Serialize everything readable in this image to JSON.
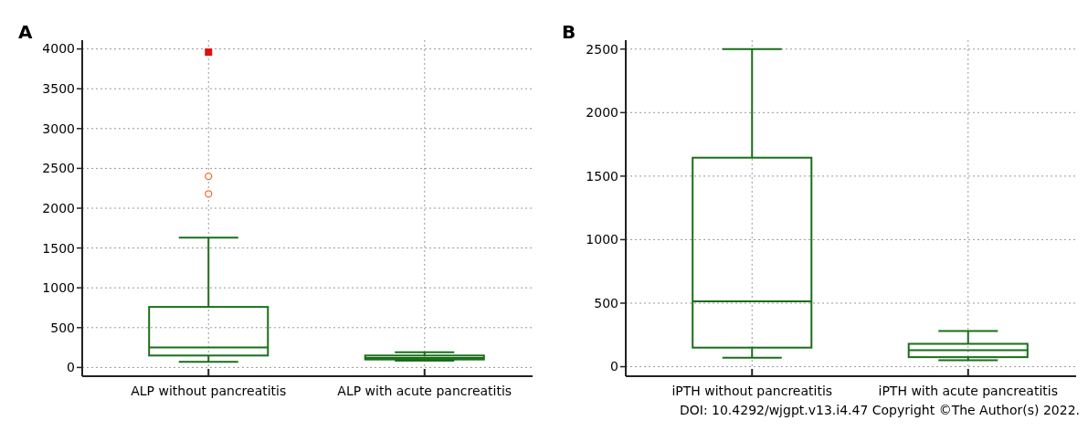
{
  "chart_data": [
    {
      "type": "box",
      "title": "A",
      "categories": [
        "ALP without pancreatitis",
        "ALP with acute pancreatitis"
      ],
      "ylim": [
        -110,
        4110
      ],
      "yticks": [
        0,
        500,
        1000,
        1500,
        2000,
        2500,
        3000,
        3500,
        4000
      ],
      "grid": true,
      "series": [
        {
          "type": "box",
          "color": "#1a6e1a",
          "boxes": [
            {
              "low": 70,
              "q1": 150,
              "median": 250,
              "q3": 760,
              "high": 1630
            },
            {
              "low": 85,
              "q1": 100,
              "median": 120,
              "q3": 150,
              "high": 190
            }
          ]
        },
        {
          "type": "scatter",
          "color": "#f07030",
          "marker": "circle",
          "x": [
            "ALP without pancreatitis",
            "ALP without pancreatitis"
          ],
          "values": [
            2180,
            2400
          ]
        },
        {
          "type": "scatter",
          "color": "#e01010",
          "marker": "square",
          "x": [
            "ALP without pancreatitis"
          ],
          "values": [
            3960
          ]
        }
      ]
    },
    {
      "type": "box",
      "title": "B",
      "categories": [
        "iPTH without pancreatitis",
        "iPTH with acute pancreatitis"
      ],
      "ylim": [
        -75,
        2570
      ],
      "yticks": [
        0,
        500,
        1000,
        1500,
        2000,
        2500
      ],
      "grid": true,
      "annotations": [
        "DOI: 10.4292/wjgpt.v13.i4.47  Copyright ©The Author(s) 2022."
      ],
      "series": [
        {
          "type": "box",
          "color": "#1a6e1a",
          "boxes": [
            {
              "low": 70,
              "q1": 150,
              "median": 515,
              "q3": 1645,
              "high": 2500
            },
            {
              "low": 50,
              "q1": 75,
              "median": 130,
              "q3": 180,
              "high": 280
            }
          ]
        }
      ]
    }
  ]
}
